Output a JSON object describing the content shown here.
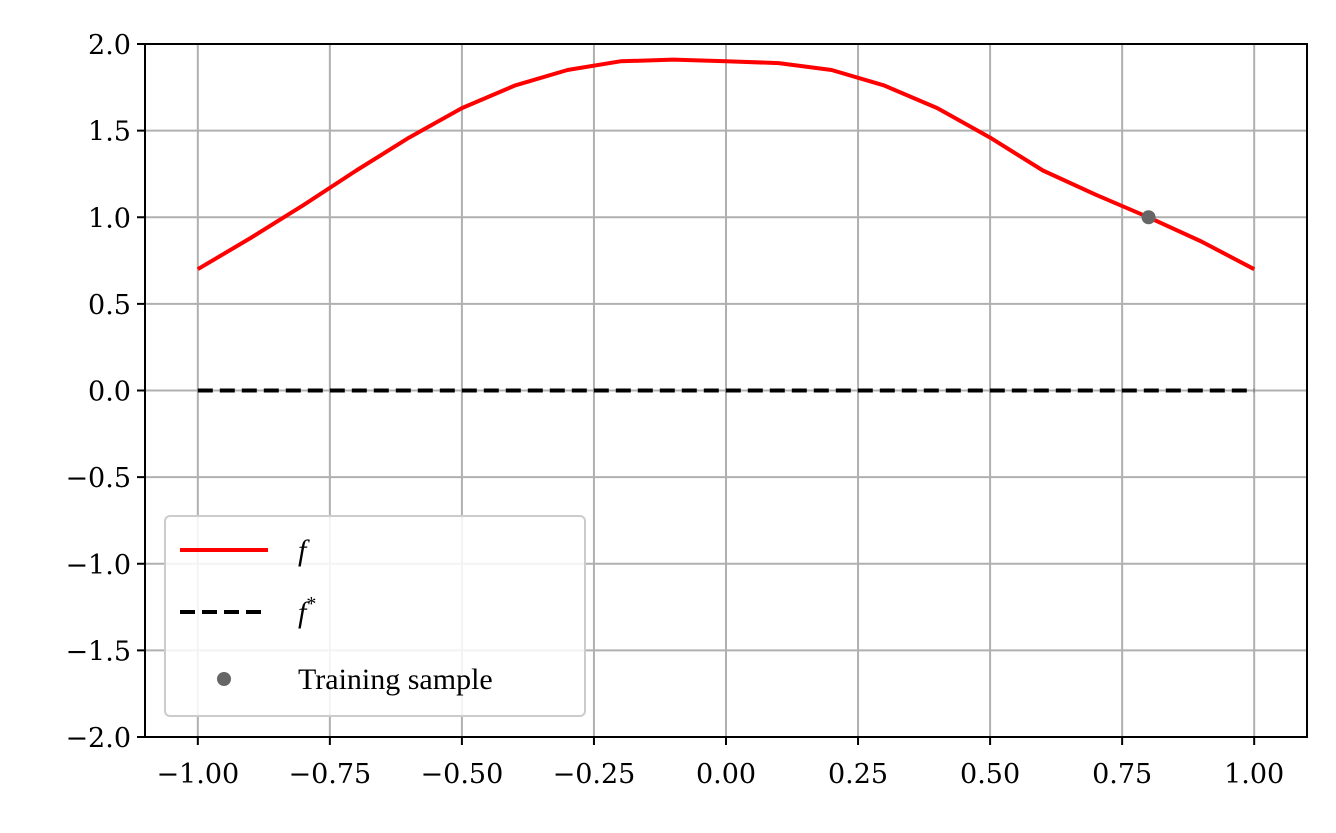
{
  "chart_data": {
    "type": "line",
    "xlim": [
      -1.1,
      1.1
    ],
    "ylim": [
      -2.0,
      2.0
    ],
    "xticks": [
      -1.0,
      -0.75,
      -0.5,
      -0.25,
      0.0,
      0.25,
      0.5,
      0.75,
      1.0
    ],
    "xtick_labels": [
      "−1.00",
      "−0.75",
      "−0.50",
      "−0.25",
      "0.00",
      "0.25",
      "0.50",
      "0.75",
      "1.00"
    ],
    "yticks": [
      -2.0,
      -1.5,
      -1.0,
      -0.5,
      0.0,
      0.5,
      1.0,
      1.5,
      2.0
    ],
    "ytick_labels": [
      "−2.0",
      "−1.5",
      "−1.0",
      "−0.5",
      "0.0",
      "0.5",
      "1.0",
      "1.5",
      "2.0"
    ],
    "grid": true,
    "legend_position": "lower-left",
    "series": [
      {
        "name": "f",
        "kind": "line",
        "style": "solid",
        "color": "#ff0000",
        "x": [
          -1.0,
          -0.9,
          -0.8,
          -0.7,
          -0.6,
          -0.5,
          -0.4,
          -0.3,
          -0.2,
          -0.1,
          0.0,
          0.1,
          0.2,
          0.3,
          0.4,
          0.5,
          0.6,
          0.7,
          0.8,
          0.9,
          1.0
        ],
        "y": [
          0.7,
          0.88,
          1.07,
          1.27,
          1.46,
          1.63,
          1.76,
          1.85,
          1.9,
          1.91,
          1.9,
          1.89,
          1.85,
          1.76,
          1.63,
          1.46,
          1.27,
          1.13,
          1.0,
          0.86,
          0.7
        ]
      },
      {
        "name": "f*",
        "kind": "line",
        "style": "dashed",
        "color": "#000000",
        "x": [
          -1.0,
          1.0
        ],
        "y": [
          0.0,
          0.0
        ]
      },
      {
        "name": "Training sample",
        "kind": "scatter",
        "color": "#666666",
        "x": [
          0.8
        ],
        "y": [
          1.0
        ]
      }
    ],
    "legend": [
      {
        "label_base": "f",
        "label_sup": "",
        "series": "f"
      },
      {
        "label_base": "f",
        "label_sup": "*",
        "series": "f*"
      },
      {
        "label_base": "Training sample",
        "label_sup": "",
        "series": "Training sample"
      }
    ]
  }
}
